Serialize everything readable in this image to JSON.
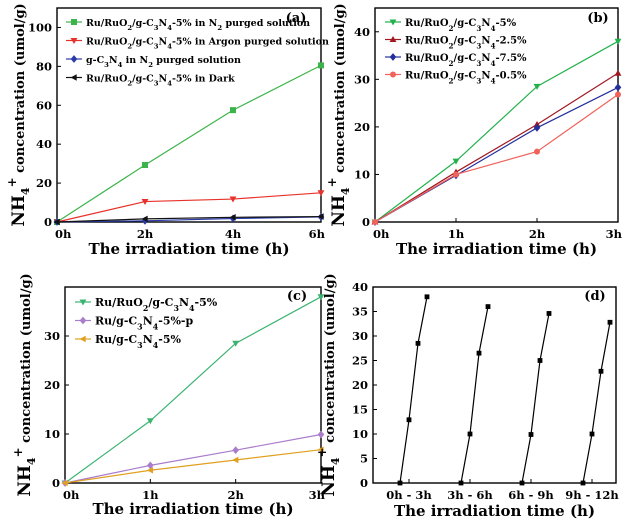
{
  "chart_data": [
    {
      "panel": "(a)",
      "type": "line",
      "categories": [
        "0h",
        "2h",
        "4h",
        "6h"
      ],
      "xlabel": "The irradiation time (h)",
      "ylabel_parts": [
        "NH",
        "4",
        "+",
        " concentration (umol/g)"
      ],
      "ylim": [
        0,
        110
      ],
      "yticks": [
        0,
        20,
        40,
        60,
        80,
        100
      ],
      "legend_position": "top-left",
      "series": [
        {
          "label_parts": [
            [
              "Ru/RuO",
              "n"
            ],
            [
              "2",
              "sub"
            ],
            [
              "/g-C",
              "n"
            ],
            [
              "3",
              "sub"
            ],
            [
              "N",
              "n"
            ],
            [
              "4",
              "sub"
            ],
            [
              "-5% in N",
              "n"
            ],
            [
              "2",
              "sub"
            ],
            [
              " purged solution",
              "n"
            ]
          ],
          "color": "#3cb44b",
          "marker": "square",
          "values": [
            0,
            29.3,
            57.5,
            80.5
          ]
        },
        {
          "label_parts": [
            [
              "Ru/RuO",
              "n"
            ],
            [
              "2",
              "sub"
            ],
            [
              "/g-C",
              "n"
            ],
            [
              "3",
              "sub"
            ],
            [
              "N",
              "n"
            ],
            [
              "4",
              "sub"
            ],
            [
              "-5% in Argon purged solution",
              "n"
            ]
          ],
          "color": "#e8312a",
          "marker": "triangle-down",
          "values": [
            0,
            10.5,
            11.8,
            15.0
          ]
        },
        {
          "label_parts": [
            [
              "g-C",
              "n"
            ],
            [
              "3",
              "sub"
            ],
            [
              "N",
              "n"
            ],
            [
              "4",
              "sub"
            ],
            [
              " in N",
              "n"
            ],
            [
              "2",
              "sub"
            ],
            [
              " purged solution",
              "n"
            ]
          ],
          "color": "#2a3aa8",
          "marker": "diamond",
          "values": [
            0,
            0.6,
            1.8,
            2.6
          ]
        },
        {
          "label_parts": [
            [
              "Ru/RuO",
              "n"
            ],
            [
              "2",
              "sub"
            ],
            [
              "/g-C",
              "n"
            ],
            [
              "3",
              "sub"
            ],
            [
              "N",
              "n"
            ],
            [
              "4",
              "sub"
            ],
            [
              "-5% in Dark",
              "n"
            ]
          ],
          "color": "#111111",
          "marker": "triangle-left",
          "values": [
            0,
            1.6,
            2.4,
            2.8
          ]
        }
      ]
    },
    {
      "panel": "(b)",
      "type": "line",
      "categories": [
        "0h",
        "1h",
        "2h",
        "3h"
      ],
      "xlabel": "The irradiation time (h)",
      "ylabel_parts": [
        "NH",
        "4",
        "+",
        " concentration (umol/g)"
      ],
      "ylim": [
        0,
        45
      ],
      "yticks": [
        0,
        10,
        20,
        30,
        40
      ],
      "legend_position": "top-left",
      "series": [
        {
          "label_parts": [
            [
              "Ru/RuO",
              "n"
            ],
            [
              "2",
              "sub"
            ],
            [
              "/g-C",
              "n"
            ],
            [
              "3",
              "sub"
            ],
            [
              "N",
              "n"
            ],
            [
              "4",
              "sub"
            ],
            [
              "-5%",
              "n"
            ]
          ],
          "color": "#22b14c",
          "marker": "triangle-down",
          "values": [
            0,
            12.8,
            28.5,
            38.0
          ]
        },
        {
          "label_parts": [
            [
              "Ru/RuO",
              "n"
            ],
            [
              "2",
              "sub"
            ],
            [
              "/g-C",
              "n"
            ],
            [
              "3",
              "sub"
            ],
            [
              "N",
              "n"
            ],
            [
              "4",
              "sub"
            ],
            [
              "-2.5%",
              "n"
            ]
          ],
          "color": "#a01820",
          "marker": "triangle-up",
          "values": [
            0,
            10.5,
            20.5,
            31.3
          ]
        },
        {
          "label_parts": [
            [
              "Ru/RuO",
              "n"
            ],
            [
              "2",
              "sub"
            ],
            [
              "/g-C",
              "n"
            ],
            [
              "3",
              "sub"
            ],
            [
              "N",
              "n"
            ],
            [
              "4",
              "sub"
            ],
            [
              "-7.5%",
              "n"
            ]
          ],
          "color": "#252f9c",
          "marker": "diamond",
          "values": [
            0,
            9.8,
            19.8,
            28.3
          ]
        },
        {
          "label_parts": [
            [
              "Ru/RuO",
              "n"
            ],
            [
              "2",
              "sub"
            ],
            [
              "/g-C",
              "n"
            ],
            [
              "3",
              "sub"
            ],
            [
              "N",
              "n"
            ],
            [
              "4",
              "sub"
            ],
            [
              "-0.5%",
              "n"
            ]
          ],
          "color": "#f0625a",
          "marker": "circle",
          "values": [
            0,
            10.0,
            14.8,
            26.8
          ]
        }
      ]
    },
    {
      "panel": "(c)",
      "type": "line",
      "categories": [
        "0h",
        "1h",
        "2h",
        "3h"
      ],
      "xlabel": "The irradiation time  (h)",
      "ylabel_parts": [
        "NH",
        "4",
        "+",
        " concentration (umol/g)"
      ],
      "ylim": [
        0,
        40
      ],
      "yticks": [
        0,
        10,
        20,
        30
      ],
      "legend_position": "top-left",
      "series": [
        {
          "label_parts": [
            [
              "Ru/RuO",
              "n"
            ],
            [
              "2",
              "sub"
            ],
            [
              "/g-C",
              "n"
            ],
            [
              "3",
              "sub"
            ],
            [
              "N",
              "n"
            ],
            [
              "4",
              "sub"
            ],
            [
              "-5%",
              "n"
            ]
          ],
          "color": "#3cb371",
          "marker": "triangle-down",
          "values": [
            0,
            12.7,
            28.5,
            38.0
          ]
        },
        {
          "label_parts": [
            [
              "Ru/g-C",
              "n"
            ],
            [
              "3",
              "sub"
            ],
            [
              "N",
              "n"
            ],
            [
              "4",
              "sub"
            ],
            [
              "-5%-p",
              "n"
            ]
          ],
          "color": "#a97ccc",
          "marker": "diamond",
          "values": [
            0,
            3.6,
            6.7,
            9.9
          ]
        },
        {
          "label_parts": [
            [
              "Ru/g-C",
              "n"
            ],
            [
              "3",
              "sub"
            ],
            [
              "N",
              "n"
            ],
            [
              "4",
              "sub"
            ],
            [
              "-5%",
              "n"
            ]
          ],
          "color": "#e0a020",
          "marker": "triangle-left",
          "values": [
            0,
            2.6,
            4.7,
            6.8
          ]
        }
      ]
    },
    {
      "panel": "(d)",
      "type": "line",
      "categories": [
        "0h - 3h",
        "3h - 6h",
        "6h - 9h",
        "9h - 12h"
      ],
      "xlabel": "The irradiation time  (h)",
      "ylabel_parts": [
        "NH",
        "4",
        "+",
        " concentration (umol/g)"
      ],
      "ylim": [
        0,
        40
      ],
      "yticks": [
        0,
        5,
        10,
        15,
        20,
        25,
        30,
        35,
        40
      ],
      "legend_position": "none",
      "series": [
        {
          "color": "#000000",
          "marker": "square",
          "cycles": [
            [
              0,
              12.9,
              28.5,
              38.0
            ],
            [
              0,
              10.0,
              26.5,
              36.0
            ],
            [
              0,
              9.9,
              25.0,
              34.6
            ],
            [
              0,
              10.0,
              22.8,
              32.8
            ]
          ]
        }
      ]
    }
  ]
}
